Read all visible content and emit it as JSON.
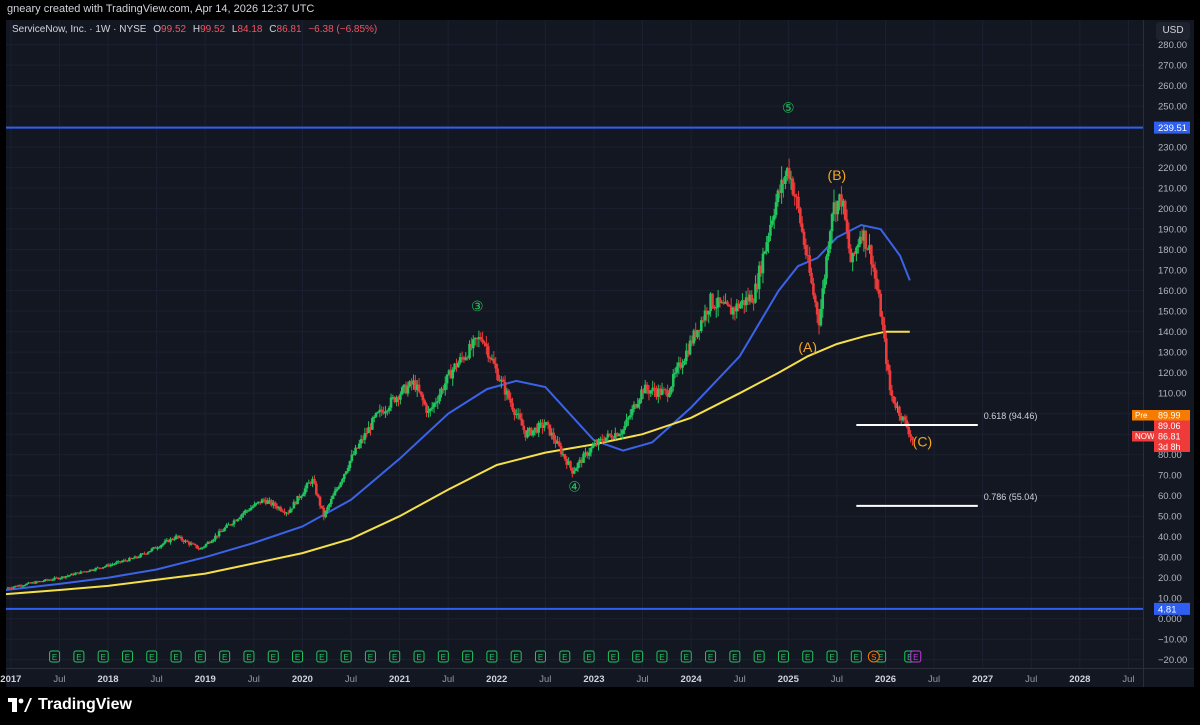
{
  "header": {
    "credit": "gneary created with TradingView.com, Apr 14, 2026 12:37 UTC"
  },
  "legend": {
    "symbol": "ServiceNow, Inc. · 1W · NYSE",
    "open_label": "O",
    "open": "99.52",
    "high_label": "H",
    "high": "99.52",
    "low_label": "L",
    "low": "84.18",
    "close_label": "C",
    "close": "86.81",
    "change": "−6.38 (−6.85%)"
  },
  "currency_button": "USD",
  "brand": {
    "name": "TradingView"
  },
  "colors": {
    "background": "#131722",
    "up": "#22c55e",
    "down": "#ef3a3a",
    "ma_blue": "#3b63e8",
    "ma_yellow": "#f5e04a",
    "hline": "#2e5ff0",
    "wave_green": "#22c55e",
    "wave_orange": "#f5a623"
  },
  "chart_data": {
    "type": "candlestick",
    "timeframe": "1W",
    "ylim": [
      -25,
      292
    ],
    "y_ticks": [
      "280.00",
      "270.00",
      "260.00",
      "250.00",
      "240.00",
      "230.00",
      "220.00",
      "210.00",
      "200.00",
      "190.00",
      "180.00",
      "170.00",
      "160.00",
      "150.00",
      "140.00",
      "130.00",
      "120.00",
      "110.00",
      "100.00",
      "90.00",
      "80.00",
      "70.00",
      "60.00",
      "50.00",
      "40.00",
      "30.00",
      "20.00",
      "10.00",
      "0.000",
      "−10.00",
      "−20.00"
    ],
    "x_ticks": [
      {
        "label": "2017",
        "t": 2017.0,
        "bold": true
      },
      {
        "label": "Jul",
        "t": 2017.5,
        "bold": false
      },
      {
        "label": "2018",
        "t": 2018.0,
        "bold": true
      },
      {
        "label": "Jul",
        "t": 2018.5,
        "bold": false
      },
      {
        "label": "2019",
        "t": 2019.0,
        "bold": true
      },
      {
        "label": "Jul",
        "t": 2019.5,
        "bold": false
      },
      {
        "label": "2020",
        "t": 2020.0,
        "bold": true
      },
      {
        "label": "Jul",
        "t": 2020.5,
        "bold": false
      },
      {
        "label": "2021",
        "t": 2021.0,
        "bold": true
      },
      {
        "label": "Jul",
        "t": 2021.5,
        "bold": false
      },
      {
        "label": "2022",
        "t": 2022.0,
        "bold": true
      },
      {
        "label": "Jul",
        "t": 2022.5,
        "bold": false
      },
      {
        "label": "2023",
        "t": 2023.0,
        "bold": true
      },
      {
        "label": "Jul",
        "t": 2023.5,
        "bold": false
      },
      {
        "label": "2024",
        "t": 2024.0,
        "bold": true
      },
      {
        "label": "Jul",
        "t": 2024.5,
        "bold": false
      },
      {
        "label": "2025",
        "t": 2025.0,
        "bold": true
      },
      {
        "label": "Jul",
        "t": 2025.5,
        "bold": false
      },
      {
        "label": "2026",
        "t": 2026.0,
        "bold": true
      },
      {
        "label": "Jul",
        "t": 2026.5,
        "bold": false
      },
      {
        "label": "2027",
        "t": 2027.0,
        "bold": true
      },
      {
        "label": "Jul",
        "t": 2027.5,
        "bold": false
      },
      {
        "label": "2028",
        "t": 2028.0,
        "bold": true
      },
      {
        "label": "Jul",
        "t": 2028.5,
        "bold": false
      }
    ],
    "price_path": [
      [
        2016.95,
        15
      ],
      [
        2017.5,
        20
      ],
      [
        2018.0,
        26
      ],
      [
        2018.3,
        30
      ],
      [
        2018.7,
        40
      ],
      [
        2018.95,
        34
      ],
      [
        2019.4,
        52
      ],
      [
        2019.6,
        58
      ],
      [
        2019.85,
        52
      ],
      [
        2020.1,
        68
      ],
      [
        2020.22,
        50
      ],
      [
        2020.5,
        78
      ],
      [
        2020.75,
        98
      ],
      [
        2021.0,
        110
      ],
      [
        2021.15,
        115
      ],
      [
        2021.3,
        100
      ],
      [
        2021.55,
        122
      ],
      [
        2021.85,
        138
      ],
      [
        2022.0,
        120
      ],
      [
        2022.3,
        90
      ],
      [
        2022.5,
        95
      ],
      [
        2022.78,
        72
      ],
      [
        2022.95,
        82
      ],
      [
        2023.1,
        88
      ],
      [
        2023.3,
        92
      ],
      [
        2023.5,
        112
      ],
      [
        2023.75,
        110
      ],
      [
        2023.95,
        130
      ],
      [
        2024.2,
        155
      ],
      [
        2024.4,
        150
      ],
      [
        2024.65,
        158
      ],
      [
        2024.85,
        200
      ],
      [
        2025.0,
        220
      ],
      [
        2025.1,
        200
      ],
      [
        2025.25,
        160
      ],
      [
        2025.32,
        145
      ],
      [
        2025.45,
        200
      ],
      [
        2025.55,
        205
      ],
      [
        2025.65,
        172
      ],
      [
        2025.75,
        190
      ],
      [
        2025.85,
        178
      ],
      [
        2025.95,
        150
      ],
      [
        2026.05,
        110
      ],
      [
        2026.15,
        100
      ],
      [
        2026.22,
        94
      ],
      [
        2026.28,
        86.81
      ]
    ],
    "series": [
      {
        "name": "",
        "color": "#3b63e8",
        "points": [
          [
            2016.95,
            14
          ],
          [
            2017.5,
            17
          ],
          [
            2018.0,
            20
          ],
          [
            2018.5,
            24
          ],
          [
            2019.0,
            30
          ],
          [
            2019.5,
            37
          ],
          [
            2020.0,
            45
          ],
          [
            2020.5,
            58
          ],
          [
            2021.0,
            78
          ],
          [
            2021.5,
            100
          ],
          [
            2021.9,
            112
          ],
          [
            2022.2,
            116
          ],
          [
            2022.5,
            113
          ],
          [
            2022.75,
            100
          ],
          [
            2023.0,
            87
          ],
          [
            2023.3,
            82
          ],
          [
            2023.6,
            86
          ],
          [
            2024.0,
            103
          ],
          [
            2024.5,
            128
          ],
          [
            2024.9,
            160
          ],
          [
            2025.1,
            172
          ],
          [
            2025.3,
            176
          ],
          [
            2025.5,
            186
          ],
          [
            2025.75,
            192
          ],
          [
            2025.95,
            190
          ],
          [
            2026.15,
            177
          ],
          [
            2026.25,
            165
          ]
        ]
      },
      {
        "name": "",
        "color": "#f5e04a",
        "points": [
          [
            2016.95,
            12
          ],
          [
            2017.5,
            14
          ],
          [
            2018.0,
            16
          ],
          [
            2018.5,
            19
          ],
          [
            2019.0,
            22
          ],
          [
            2019.5,
            27
          ],
          [
            2020.0,
            32
          ],
          [
            2020.5,
            39
          ],
          [
            2021.0,
            50
          ],
          [
            2021.5,
            63
          ],
          [
            2022.0,
            75
          ],
          [
            2022.5,
            81
          ],
          [
            2023.0,
            85
          ],
          [
            2023.5,
            90
          ],
          [
            2024.0,
            98
          ],
          [
            2024.5,
            110
          ],
          [
            2024.9,
            120
          ],
          [
            2025.2,
            128
          ],
          [
            2025.5,
            134
          ],
          [
            2025.8,
            138
          ],
          [
            2026.0,
            140
          ],
          [
            2026.25,
            140
          ]
        ]
      }
    ],
    "horizontal_lines": [
      {
        "price": 239.51,
        "label": "239.51",
        "color": "#2e5ff0"
      },
      {
        "price": 4.81,
        "label": "4.81",
        "color": "#2e5ff0"
      }
    ],
    "fib_levels": [
      {
        "label": "0.618 (94.46)",
        "price": 94.46,
        "t0": 2025.7,
        "t1": 2026.95
      },
      {
        "label": "0.786 (55.04)",
        "price": 55.04,
        "t0": 2025.7,
        "t1": 2026.95
      }
    ],
    "price_tags": [
      {
        "text": "Pre",
        "value": "89.99",
        "price": 95,
        "color": "#f57c00"
      },
      {
        "text": "",
        "value": "89.06",
        "price": 89.06,
        "color": "#ef3a3a"
      },
      {
        "text": "NOW",
        "value": "86.81",
        "price": 86.81,
        "color": "#ef3a3a"
      },
      {
        "text": "",
        "value": "3d 8h",
        "price": 80,
        "color": "#ef3a3a"
      }
    ],
    "wave_labels": [
      {
        "text": "③",
        "t": 2021.8,
        "price": 150,
        "color": "#22c55e"
      },
      {
        "text": "④",
        "t": 2022.8,
        "price": 62,
        "color": "#22c55e"
      },
      {
        "text": "⑤",
        "t": 2025.0,
        "price": 247,
        "color": "#22c55e"
      },
      {
        "text": "(A)",
        "t": 2025.2,
        "price": 130,
        "color": "#f5a623"
      },
      {
        "text": "(B)",
        "t": 2025.5,
        "price": 214,
        "color": "#f5a623"
      },
      {
        "text": "(C)",
        "t": 2026.38,
        "price": 84,
        "color": "#f5a623"
      }
    ],
    "earnings_markers": [
      2017.45,
      2017.7,
      2017.95,
      2018.2,
      2018.45,
      2018.7,
      2018.95,
      2019.2,
      2019.45,
      2019.7,
      2019.95,
      2020.2,
      2020.45,
      2020.7,
      2020.95,
      2021.2,
      2021.45,
      2021.7,
      2021.95,
      2022.2,
      2022.45,
      2022.7,
      2022.95,
      2023.2,
      2023.45,
      2023.7,
      2023.95,
      2024.2,
      2024.45,
      2024.7,
      2024.95,
      2025.2,
      2025.45,
      2025.7,
      2025.95,
      2026.25
    ],
    "earnings_label": "E",
    "special_marker": {
      "text": "S",
      "t": 2025.88
    },
    "future_marker": {
      "text": "E",
      "t": 2026.25
    }
  }
}
